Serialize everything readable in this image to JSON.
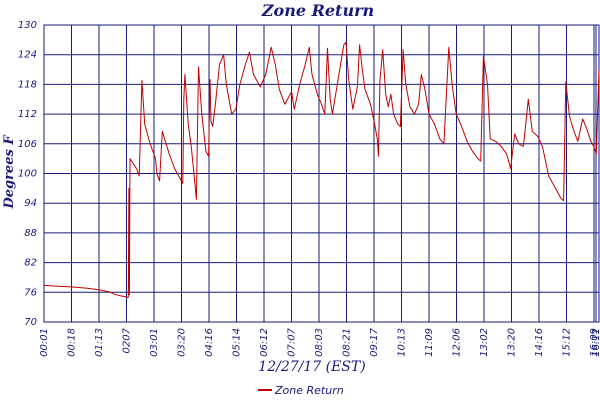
{
  "chart_data": {
    "type": "line",
    "title": "Zone Return",
    "xlabel": "12/27/17 (EST)",
    "ylabel": "Degrees F",
    "ylim": [
      70,
      130
    ],
    "yticks": [
      "70",
      "76",
      "82",
      "88",
      "94",
      "100",
      "106",
      "112",
      "118",
      "124",
      "130"
    ],
    "xticks": [
      "00:01",
      "00:18",
      "01:13",
      "0207",
      "03:01",
      "03:20",
      "04:16",
      "05:14",
      "06:12",
      "07:07",
      "08:03",
      "08:21",
      "09:17",
      "10:13",
      "11:09",
      "12:06",
      "13:02",
      "13:20",
      "14:16",
      "15:12",
      "16:09",
      "16:11"
    ],
    "grid": true,
    "legend_position": "bottom-center",
    "colors": {
      "series": "#c00000",
      "grid": "#1a1a7a",
      "text": "#1a1a7a"
    },
    "series": [
      {
        "name": "Zone Return",
        "points": [
          [
            0.0,
            77.4
          ],
          [
            0.6,
            77.2
          ],
          [
            1.0,
            77.1
          ],
          [
            1.6,
            76.8
          ],
          [
            2.0,
            76.5
          ],
          [
            2.4,
            76.1
          ],
          [
            2.6,
            75.6
          ],
          [
            2.8,
            75.3
          ],
          [
            3.0,
            75.1
          ],
          [
            3.1,
            75.0
          ],
          [
            3.12,
            97.0
          ],
          [
            3.14,
            75.5
          ],
          [
            3.16,
            103.0
          ],
          [
            3.4,
            101.0
          ],
          [
            3.5,
            99.5
          ],
          [
            3.6,
            118.8
          ],
          [
            3.7,
            110.0
          ],
          [
            3.9,
            106.0
          ],
          [
            4.1,
            103.0
          ],
          [
            4.15,
            100.0
          ],
          [
            4.25,
            98.5
          ],
          [
            4.35,
            108.5
          ],
          [
            4.6,
            104.0
          ],
          [
            4.8,
            101.0
          ],
          [
            5.0,
            99.0
          ],
          [
            5.1,
            98.0
          ],
          [
            5.14,
            115.0
          ],
          [
            5.18,
            120.0
          ],
          [
            5.3,
            110.0
          ],
          [
            5.42,
            105.0
          ],
          [
            5.6,
            94.8
          ],
          [
            5.68,
            121.5
          ],
          [
            5.8,
            112.0
          ],
          [
            5.95,
            104.5
          ],
          [
            6.05,
            103.5
          ],
          [
            6.1,
            119.0
          ],
          [
            6.14,
            110.5
          ],
          [
            6.2,
            109.5
          ],
          [
            6.3,
            114.0
          ],
          [
            6.45,
            122.0
          ],
          [
            6.6,
            124.0
          ],
          [
            6.7,
            118.0
          ],
          [
            6.9,
            112.0
          ],
          [
            7.05,
            113.0
          ],
          [
            7.2,
            118.0
          ],
          [
            7.4,
            122.0
          ],
          [
            7.55,
            124.5
          ],
          [
            7.7,
            120.0
          ],
          [
            7.95,
            117.5
          ],
          [
            8.15,
            120.0
          ],
          [
            8.35,
            125.5
          ],
          [
            8.5,
            122.0
          ],
          [
            8.65,
            117.0
          ],
          [
            8.85,
            114.0
          ],
          [
            9.1,
            116.5
          ],
          [
            9.2,
            113.0
          ],
          [
            9.4,
            118.0
          ],
          [
            9.6,
            122.0
          ],
          [
            9.75,
            125.5
          ],
          [
            9.85,
            120.0
          ],
          [
            10.05,
            116.0
          ],
          [
            10.2,
            114.0
          ],
          [
            10.32,
            112.0
          ],
          [
            10.42,
            125.3
          ],
          [
            10.52,
            115.0
          ],
          [
            10.6,
            112.0
          ],
          [
            10.75,
            117.0
          ],
          [
            10.9,
            122.0
          ],
          [
            11.02,
            126.0
          ],
          [
            11.1,
            126.5
          ],
          [
            11.2,
            119.0
          ],
          [
            11.35,
            113.0
          ],
          [
            11.52,
            117.5
          ],
          [
            11.6,
            126.0
          ],
          [
            11.7,
            121.0
          ],
          [
            11.8,
            117.0
          ],
          [
            12.0,
            114.0
          ],
          [
            12.15,
            110.0
          ],
          [
            12.25,
            107.0
          ],
          [
            12.29,
            103.5
          ],
          [
            12.35,
            119.0
          ],
          [
            12.45,
            125.0
          ],
          [
            12.56,
            116.0
          ],
          [
            12.65,
            113.5
          ],
          [
            12.75,
            116.0
          ],
          [
            12.85,
            112.0
          ],
          [
            13.0,
            110.0
          ],
          [
            13.1,
            109.5
          ],
          [
            13.2,
            125.0
          ],
          [
            13.3,
            118.0
          ],
          [
            13.45,
            113.5
          ],
          [
            13.62,
            112.0
          ],
          [
            13.77,
            114.0
          ],
          [
            13.87,
            120.0
          ],
          [
            14.0,
            117.0
          ],
          [
            14.15,
            112.0
          ],
          [
            14.35,
            110.0
          ],
          [
            14.55,
            107.0
          ],
          [
            14.7,
            106.0
          ],
          [
            14.88,
            125.5
          ],
          [
            15.0,
            118.0
          ],
          [
            15.15,
            112.0
          ],
          [
            15.35,
            109.5
          ],
          [
            15.55,
            106.5
          ],
          [
            15.75,
            104.5
          ],
          [
            15.95,
            103.0
          ],
          [
            16.05,
            102.5
          ],
          [
            16.15,
            123.7
          ],
          [
            16.3,
            118.0
          ],
          [
            16.4,
            107.0
          ],
          [
            16.6,
            106.5
          ],
          [
            16.8,
            105.5
          ],
          [
            17.0,
            104.0
          ],
          [
            17.15,
            101.0
          ],
          [
            17.3,
            108.0
          ],
          [
            17.45,
            106.0
          ],
          [
            17.62,
            105.5
          ],
          [
            17.8,
            115.0
          ],
          [
            17.95,
            108.5
          ],
          [
            18.15,
            107.5
          ],
          [
            18.32,
            105.5
          ],
          [
            18.55,
            99.5
          ],
          [
            18.8,
            97.0
          ],
          [
            19.0,
            95.0
          ],
          [
            19.1,
            94.5
          ],
          [
            19.18,
            118.5
          ],
          [
            19.32,
            111.5
          ],
          [
            19.48,
            108.5
          ],
          [
            19.62,
            106.5
          ],
          [
            19.8,
            111.0
          ],
          [
            19.95,
            109.0
          ],
          [
            20.1,
            106.5
          ],
          [
            20.2,
            105.5
          ],
          [
            20.3,
            104.0
          ],
          [
            20.4,
            121.0
          ]
        ]
      }
    ]
  },
  "legend": {
    "label": "Zone Return"
  }
}
